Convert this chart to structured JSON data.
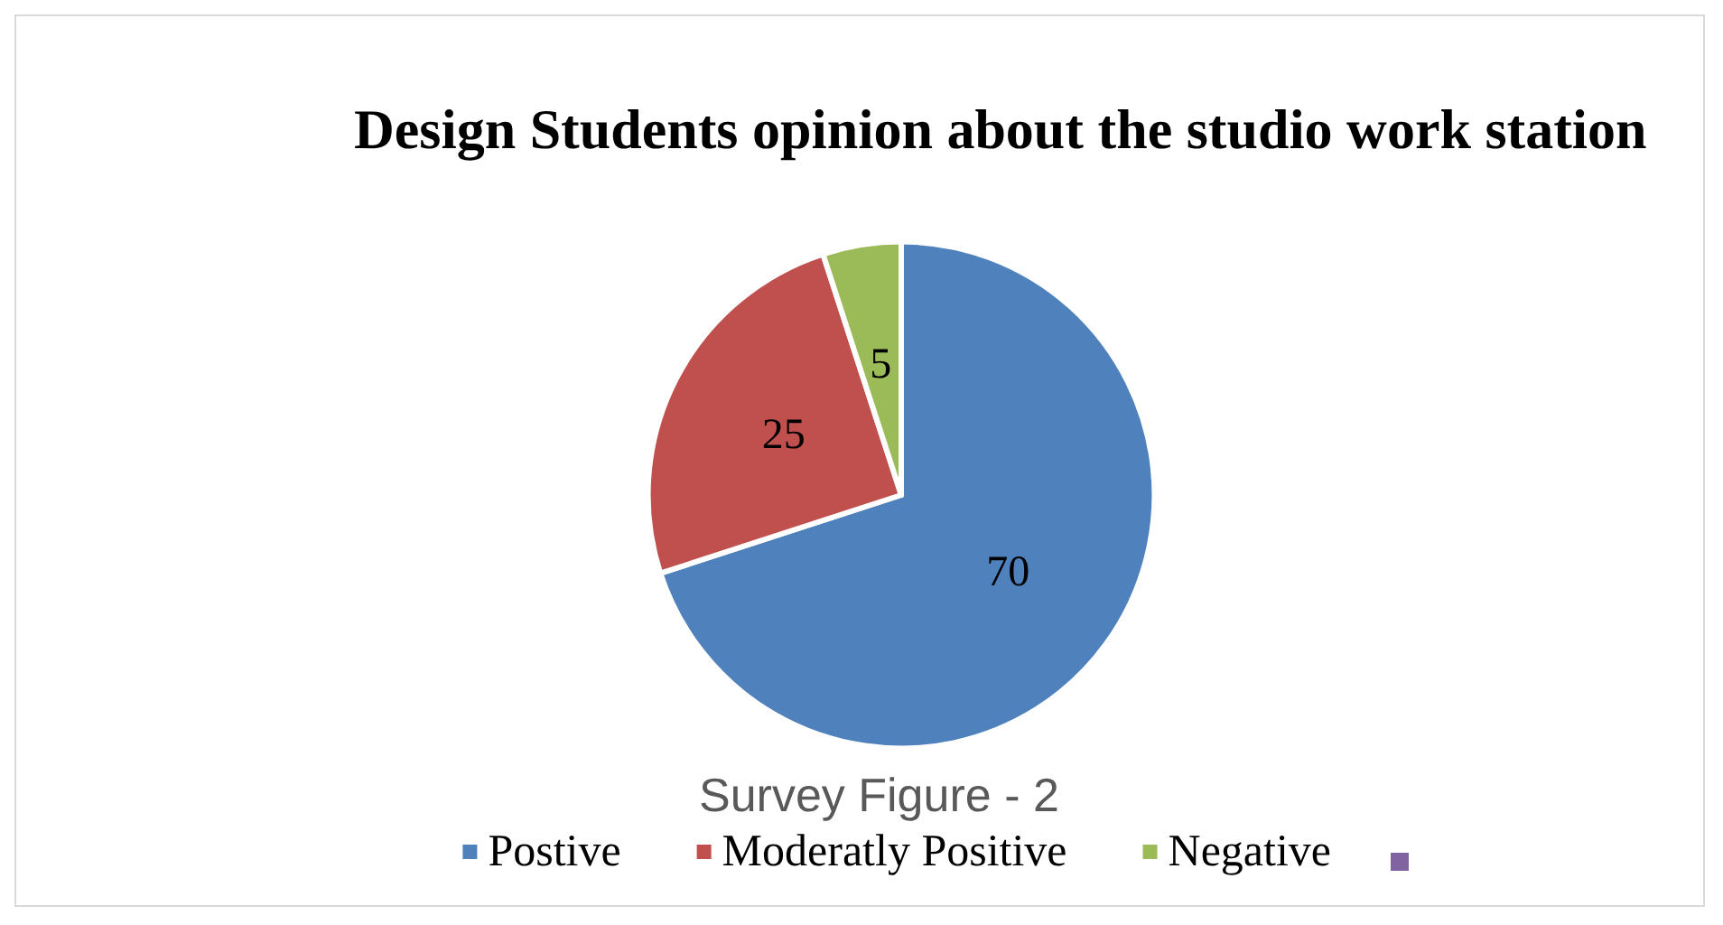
{
  "chart_data": {
    "type": "pie",
    "title": "Design Students opinion about the studio work station",
    "categories": [
      "Postive",
      "Moderatly Positive",
      "Negative",
      null
    ],
    "values": [
      70,
      25,
      5,
      0
    ],
    "colors": [
      "#4f81bd",
      "#c0504d",
      "#9bbb59",
      "#8064a2"
    ],
    "data_labels": true,
    "legend": "bottom",
    "annotations": [
      "Survey Figure - 2"
    ]
  }
}
